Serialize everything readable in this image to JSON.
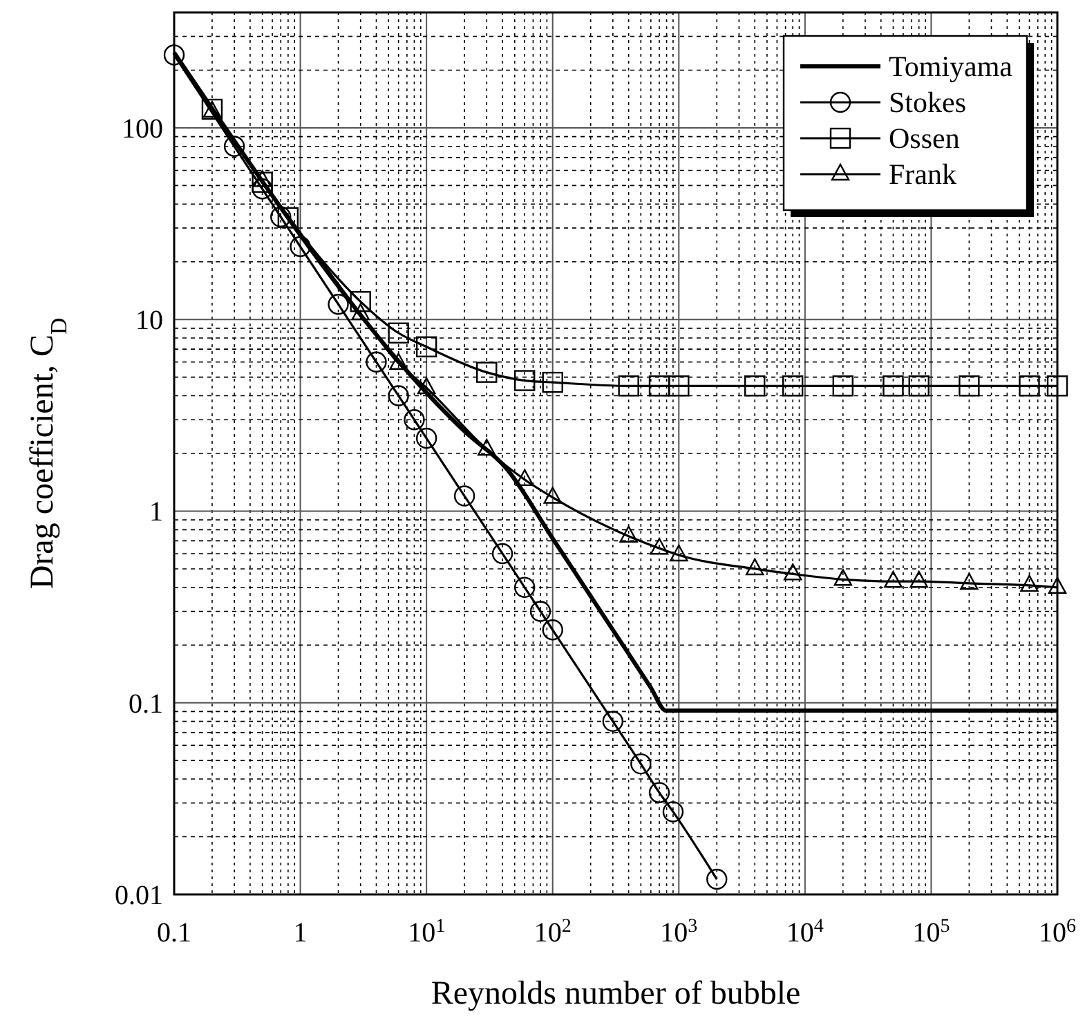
{
  "chart_data": {
    "type": "line",
    "xlabel": "Reynolds number of bubble",
    "ylabel": "Drag coefficient, C$_{D}$",
    "log": "xy",
    "grid": true,
    "legend": "top right",
    "xlim": [
      0.1,
      1000000
    ],
    "ylim": [
      0.01,
      400
    ],
    "xticks": [
      0.1,
      1,
      {
        "value": 10,
        "label": "10$^{1}$"
      },
      {
        "value": 100,
        "label": "10$^{2}$"
      },
      {
        "value": 1000,
        "label": "10$^{3}$"
      },
      {
        "value": 10000,
        "label": "10$^{4}$"
      },
      {
        "value": 100000,
        "label": "10$^{5}$"
      },
      {
        "value": 1000000,
        "label": "10$^{6}$"
      }
    ],
    "yticks": [
      0.01,
      0.1,
      1,
      10,
      100
    ],
    "series": [
      {
        "name": "Tomiyama",
        "color": "#000000",
        "marker": "none",
        "x": [
          0.1,
          0.2,
          0.5,
          1,
          2,
          5,
          10,
          20,
          43,
          100,
          200,
          400,
          600,
          790,
          1000,
          1000000
        ],
        "values": [
          247,
          126,
          52.5,
          27.6,
          14.9,
          6.97,
          4.15,
          2.61,
          1.67,
          0.72,
          0.36,
          0.18,
          0.12,
          0.091,
          0.091,
          0.091
        ]
      },
      {
        "name": "Stokes",
        "color": "#000000",
        "marker": "circle",
        "x": [
          0.1,
          0.3,
          0.5,
          0.7,
          1,
          2,
          4,
          6,
          8,
          10,
          20,
          40,
          60,
          80,
          100,
          300,
          500,
          700,
          900,
          2000
        ],
        "values": [
          240,
          80,
          48,
          34.3,
          24,
          12,
          6,
          4,
          3,
          2.4,
          1.2,
          0.6,
          0.4,
          0.3,
          0.24,
          0.08,
          0.048,
          0.034,
          0.027,
          0.012
        ]
      },
      {
        "name": "Ossen",
        "color": "#000000",
        "marker": "square",
        "x": [
          0.2,
          0.5,
          0.8,
          3,
          6,
          10,
          30,
          60,
          100,
          400,
          700,
          1000,
          4000,
          8000,
          20000,
          50000,
          80000,
          200000,
          600000,
          1000000
        ],
        "values": [
          125,
          52,
          34,
          12.4,
          8.5,
          7.2,
          5.3,
          4.8,
          4.7,
          4.5,
          4.5,
          4.5,
          4.5,
          4.5,
          4.5,
          4.5,
          4.5,
          4.5,
          4.5,
          4.5
        ]
      },
      {
        "name": "Frank",
        "color": "#000000",
        "marker": "triangle",
        "x": [
          0.2,
          0.5,
          3,
          6,
          10,
          30,
          60,
          100,
          400,
          700,
          1000,
          4000,
          8000,
          20000,
          50000,
          80000,
          200000,
          600000,
          1000000
        ],
        "values": [
          122,
          53,
          10.7,
          5.9,
          4.4,
          2.1,
          1.46,
          1.18,
          0.74,
          0.64,
          0.59,
          0.5,
          0.47,
          0.44,
          0.43,
          0.43,
          0.42,
          0.41,
          0.4
        ]
      }
    ]
  }
}
